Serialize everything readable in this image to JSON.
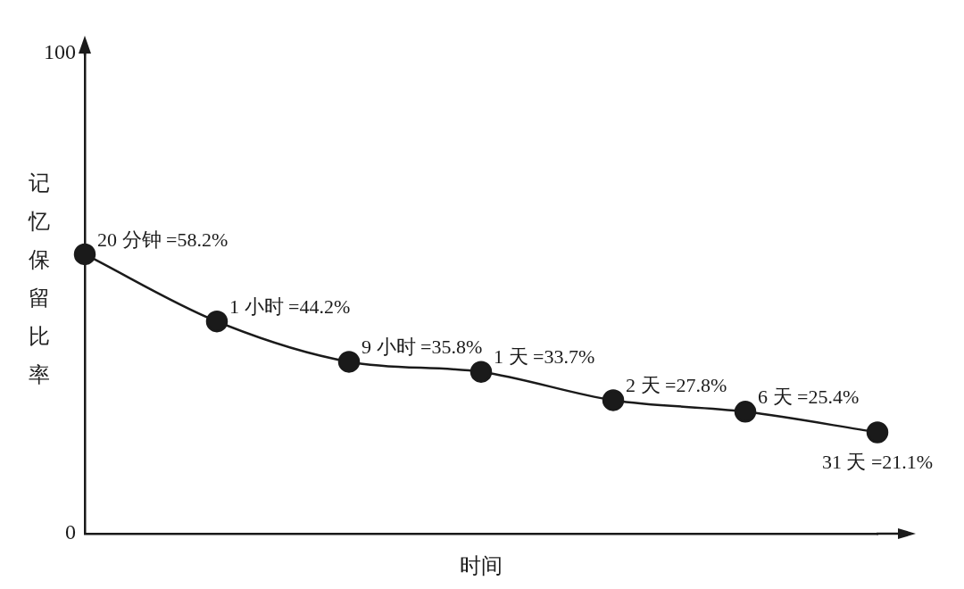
{
  "chart_data": {
    "type": "line",
    "xlabel": "时间",
    "ylabel": "记忆保留比率",
    "categories": [
      null,
      null,
      null,
      null,
      null,
      null,
      null
    ],
    "values": [
      58.2,
      44.2,
      35.8,
      33.7,
      27.8,
      25.4,
      21.1
    ],
    "color": "#1a1a1a",
    "value_labels": [
      "20 分钟 =58.2%",
      "1 小时 =44.2%",
      "9 小时 =35.8%",
      "1 天 =33.7%",
      "2 天 =27.8%",
      "6 天 =25.4%",
      "31 天 =21.1%"
    ],
    "ylim": [
      0,
      100
    ],
    "yticks": [
      0,
      100
    ],
    "tick_labels": "y",
    "grid": false,
    "legend": false,
    "marker": "circle",
    "line_style": "solid"
  }
}
